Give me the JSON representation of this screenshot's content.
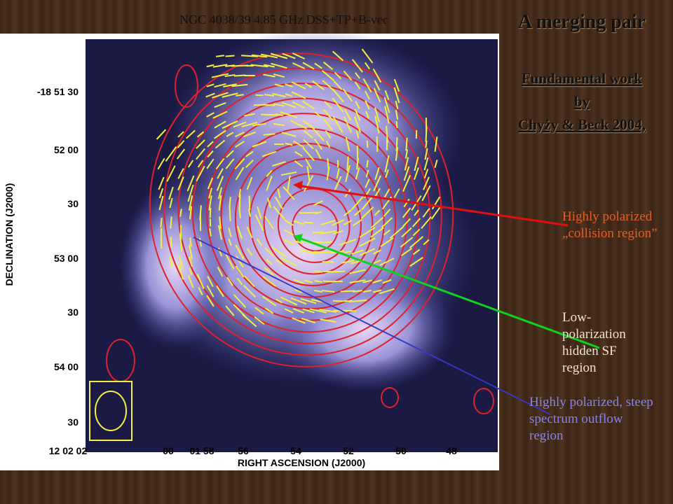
{
  "header": {
    "title": "NGC 4038/39  4.85 GHz DSS+TP+B-vec"
  },
  "sidebar": {
    "title": "A merging pair",
    "credit": [
      "Fundamental work by",
      "Chyży & Beck 2004,"
    ]
  },
  "figure": {
    "y_axis_label": "DECLINATION (J2000)",
    "x_axis_label": "RIGHT ASCENSION (J2000)",
    "y_ticks": [
      "-18 51 30",
      "52 00",
      "30",
      "53 00",
      "30",
      "54 00",
      "30"
    ],
    "x_ticks": [
      "12 02 02",
      "00",
      "01 58",
      "56",
      "54",
      "52",
      "50",
      "48"
    ]
  },
  "annotations": [
    {
      "text": "Highly polarized „collision region”"
    },
    {
      "text": "Low-polarization hidden SF region"
    },
    {
      "text": "Highly polarized, steep spectrum outflow region"
    }
  ]
}
